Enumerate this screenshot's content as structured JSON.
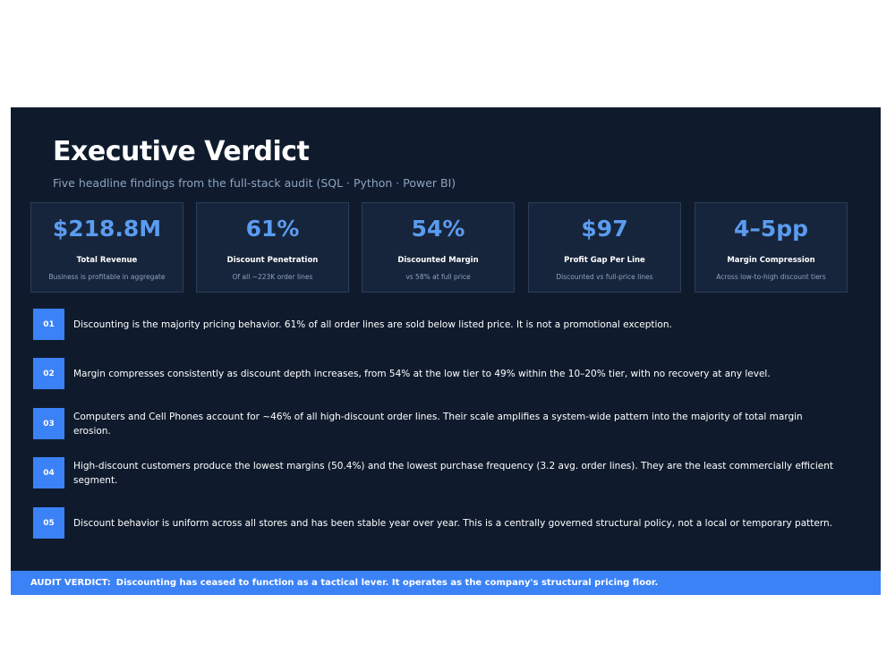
{
  "header": {
    "title": "Executive Verdict",
    "subtitle": "Five headline findings from the full-stack audit (SQL · Python · Power BI)"
  },
  "metrics": [
    {
      "value": "$218.8M",
      "label": "Total Revenue",
      "note": "Business is profitable in aggregate"
    },
    {
      "value": "61%",
      "label": "Discount Penetration",
      "note": "Of all ~223K order lines"
    },
    {
      "value": "54%",
      "label": "Discounted Margin",
      "note": "vs 58% at full price"
    },
    {
      "value": "$97",
      "label": "Profit Gap Per Line",
      "note": "Discounted vs full-price lines"
    },
    {
      "value": "4–5pp",
      "label": "Margin Compression",
      "note": "Across low-to-high discount tiers"
    }
  ],
  "findings": [
    {
      "number": "01",
      "text": "Discounting is the majority pricing behavior. 61% of all order lines are sold below listed price. It is not a promotional exception."
    },
    {
      "number": "02",
      "text": "Margin compresses consistently as discount depth increases, from 54% at the low tier to 49% within the 10–20% tier, with no recovery at any level."
    },
    {
      "number": "03",
      "text": "Computers and Cell Phones account for ~46% of all high-discount order lines. Their scale amplifies a system-wide pattern into the majority of total margin erosion."
    },
    {
      "number": "04",
      "text": "High-discount customers produce the lowest margins (50.4%) and the lowest purchase frequency (3.2 avg. order lines). They are the least commercially efficient segment."
    },
    {
      "number": "05",
      "text": "Discount behavior is uniform across all stores and has been stable year over year. This is a centrally governed structural policy, not a local or temporary pattern."
    }
  ],
  "verdict": {
    "label": "AUDIT VERDICT:",
    "text": "Discounting has ceased to function as a tactical lever. It operates as the company's structural pricing floor."
  }
}
